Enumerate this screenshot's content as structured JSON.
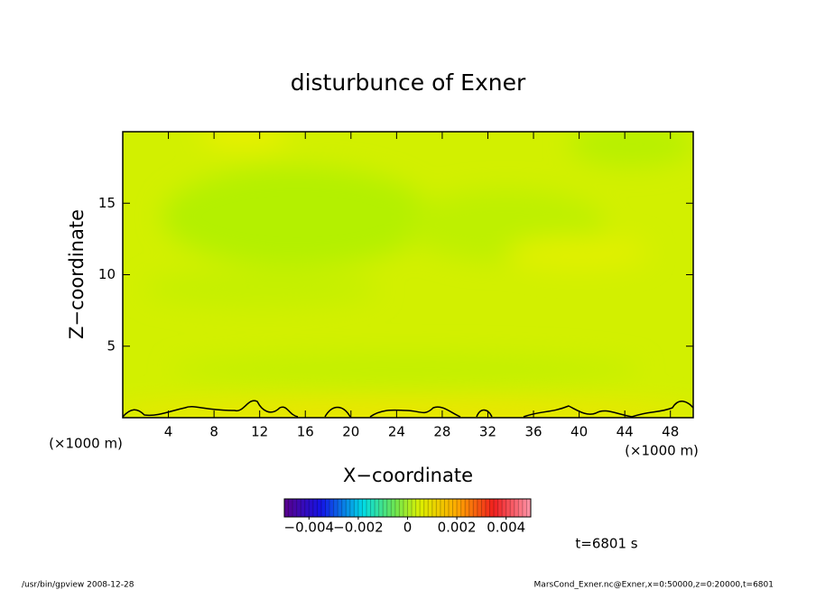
{
  "chart_data": {
    "type": "contour",
    "title": "disturbunce of Exner",
    "xlabel": "X−coordinate",
    "ylabel": "Z−coordinate",
    "xunit": "(×1000 m)",
    "xlim": [
      0,
      50
    ],
    "xticks": [
      4,
      8,
      12,
      16,
      20,
      24,
      28,
      32,
      36,
      40,
      44,
      48
    ],
    "ylim": [
      0,
      20
    ],
    "yticks": [
      5,
      10,
      15
    ],
    "colorbar": {
      "clim": [
        -0.005,
        0.005
      ],
      "ticks": [
        {
          "value": -0.004,
          "label": "−0.004"
        },
        {
          "value": -0.002,
          "label": "−0.002"
        },
        0,
        0.002,
        0.004
      ]
    },
    "annotation": "t=6801 s",
    "footer_left": "/usr/bin/gpview   2008-12-28",
    "footer_right": "MarsCond_Exner.nc@Exner,x=0:50000,z=0:20000,t=6801"
  }
}
